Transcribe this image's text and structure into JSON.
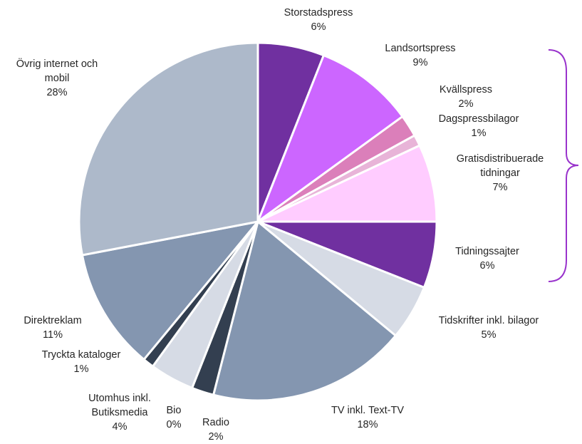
{
  "chart_data": {
    "type": "pie",
    "categories": [
      "Storstadspress",
      "Landsortspress",
      "Kvällspress",
      "Dagspressbilagor",
      "Gratisdistribuerade tidningar",
      "Tidningssajter",
      "Tidskrifter inkl. bilagor",
      "TV inkl. Text-TV",
      "Radio",
      "Bio",
      "Utomhus inkl. Butiksmedia",
      "Tryckta kataloger",
      "Direktreklam",
      "Övrig internet och mobil"
    ],
    "values": [
      6,
      9,
      2,
      1,
      7,
      6,
      5,
      18,
      2,
      0,
      4,
      1,
      11,
      28
    ],
    "value_labels": [
      "6%",
      "9%",
      "2%",
      "1%",
      "7%",
      "6%",
      "5%",
      "18%",
      "2%",
      "0%",
      "4%",
      "1%",
      "11%",
      "28%"
    ],
    "colors": [
      "#7030a0",
      "#cc66ff",
      "#db7fba",
      "#e8b4d8",
      "#ffccff",
      "#7030a0",
      "#d6dbe5",
      "#8496b0",
      "#333f50",
      "#d6dbe5",
      "#d6dbe5",
      "#333f50",
      "#8496b0",
      "#adb9ca"
    ]
  }
}
